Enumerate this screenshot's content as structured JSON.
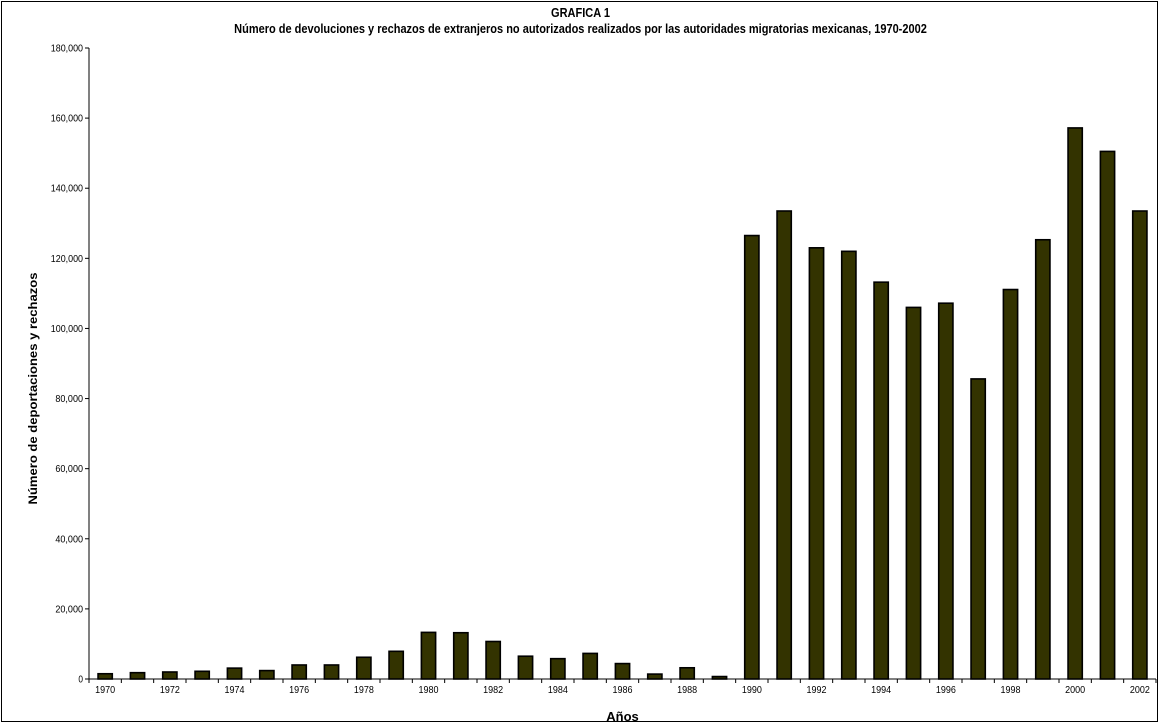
{
  "chart_data": {
    "type": "bar",
    "title": "GRAFICA 1",
    "subtitle": "Número de devoluciones y rechazos de extranjeros no autorizados realizados por las autoridades migratorias mexicanas, 1970-2002",
    "xlabel": "Años",
    "ylabel": "Número de deportaciones y rechazos",
    "ylim": [
      0,
      180000
    ],
    "yticks": [
      "0",
      "20,000",
      "40,000",
      "60,000",
      "80,000",
      "100,000",
      "120,000",
      "140,000",
      "160,000",
      "180,000"
    ],
    "categories": [
      "1970",
      "1971",
      "1972",
      "1973",
      "1974",
      "1975",
      "1976",
      "1977",
      "1978",
      "1979",
      "1980",
      "1981",
      "1982",
      "1983",
      "1984",
      "1985",
      "1986",
      "1987",
      "1988",
      "1989",
      "1990",
      "1991",
      "1992",
      "1993",
      "1994",
      "1995",
      "1996",
      "1997",
      "1998",
      "1999",
      "2000",
      "2001",
      "2002"
    ],
    "xtick_labels": [
      "1970",
      "",
      "1972",
      "",
      "1974",
      "",
      "1976",
      "",
      "1978",
      "",
      "1980",
      "",
      "1982",
      "",
      "1984",
      "",
      "1986",
      "",
      "1988",
      "",
      "1990",
      "",
      "1992",
      "",
      "1994",
      "",
      "1996",
      "",
      "1998",
      "",
      "2000",
      "",
      "2002"
    ],
    "values": [
      1500,
      1800,
      2000,
      2200,
      3100,
      2400,
      4000,
      4000,
      6200,
      7900,
      13300,
      13200,
      10700,
      6500,
      5800,
      7300,
      4400,
      1400,
      3200,
      700,
      126500,
      133500,
      123000,
      122000,
      113200,
      106000,
      107200,
      85600,
      111100,
      125300,
      157200,
      150500,
      133500
    ],
    "grid": false,
    "legend": "none",
    "colors": {
      "bar_fill": "#333300",
      "bar_stroke": "#000000",
      "axis": "#000000"
    }
  }
}
